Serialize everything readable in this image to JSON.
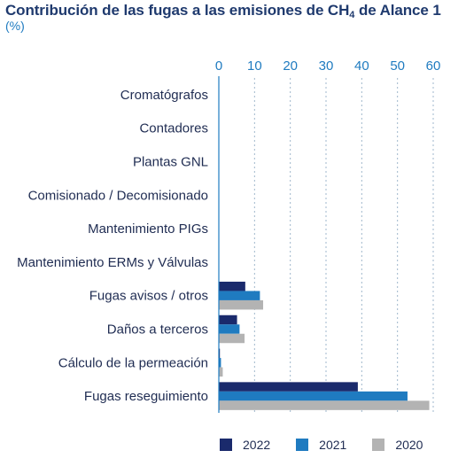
{
  "chart_data": {
    "type": "bar",
    "orientation": "horizontal",
    "title_main": "Contribución de las fugas a las emisiones de CH",
    "title_sub": "4",
    "title_tail": " de Alance 1",
    "unit_label": "(%)",
    "xlim": [
      0,
      60
    ],
    "xticks": [
      "0",
      "10",
      "20",
      "30",
      "40",
      "50",
      "60"
    ],
    "grid": true,
    "legend_position": "bottom",
    "categories": [
      "Cromatógrafos",
      "Contadores",
      "Plantas GNL",
      "Comisionado / Decomisionado",
      "Mantenimiento PIGs",
      "Mantenimiento ERMs y Válvulas",
      "Fugas avisos / otros",
      "Daños a terceros",
      "Cálculo de la permeación",
      "Fugas reseguimiento"
    ],
    "series": [
      {
        "name": "2022",
        "color": "#1a2a6c",
        "values": [
          0,
          0,
          0,
          0,
          0,
          0,
          7.4,
          5.1,
          0.3,
          38.9
        ]
      },
      {
        "name": "2021",
        "color": "#1f7bc0",
        "values": [
          0,
          0,
          0,
          0,
          0,
          0,
          11.5,
          5.8,
          0.6,
          52.8
        ]
      },
      {
        "name": "2020",
        "color": "#b3b3b3",
        "values": [
          0,
          0,
          0,
          0,
          0,
          0,
          12.4,
          7.2,
          1.1,
          58.9
        ]
      }
    ]
  }
}
